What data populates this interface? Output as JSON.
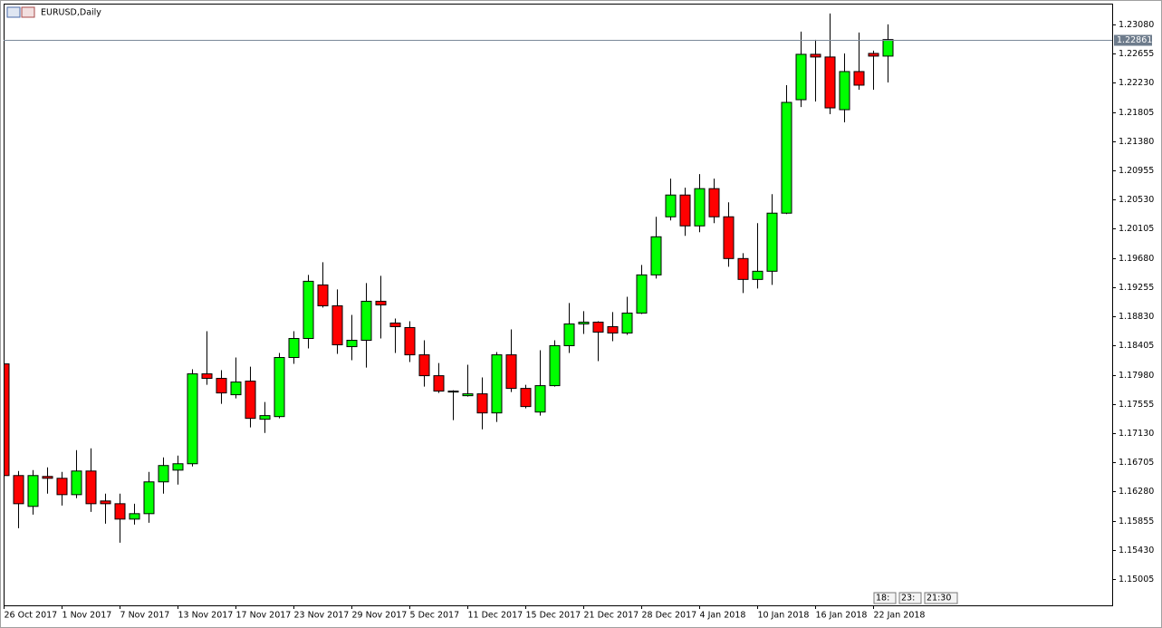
{
  "chart_data": {
    "type": "candlestick",
    "title": "EURUSD,Daily",
    "categories": [
      "26 Oct 2017",
      null,
      null,
      null,
      "1 Nov 2017",
      null,
      null,
      null,
      "7 Nov 2017",
      null,
      null,
      null,
      "13 Nov 2017",
      null,
      null,
      null,
      "17 Nov 2017",
      null,
      null,
      null,
      "23 Nov 2017",
      null,
      null,
      null,
      "29 Nov 2017",
      null,
      null,
      null,
      "5 Dec 2017",
      null,
      null,
      null,
      "11 Dec 2017",
      null,
      null,
      null,
      "15 Dec 2017",
      null,
      null,
      null,
      "21 Dec 2017",
      null,
      null,
      null,
      "28 Dec 2017",
      null,
      null,
      null,
      "4 Jan 2018",
      null,
      null,
      null,
      "10 Jan 2018",
      null,
      null,
      null,
      "16 Jan 2018",
      null,
      null,
      null,
      "22 Jan 2018",
      null
    ],
    "open": [
      1.18138,
      1.16512,
      1.16063,
      1.16499,
      1.16472,
      1.16234,
      1.16578,
      1.16142,
      1.16102,
      1.15878,
      1.15957,
      1.1642,
      1.16591,
      1.16684,
      1.17993,
      1.17927,
      1.17689,
      1.17887,
      1.17332,
      1.17371,
      1.18231,
      1.18508,
      1.19288,
      1.18984,
      1.18389,
      1.18482,
      1.1905,
      1.18733,
      1.18667,
      1.1827,
      1.17966,
      1.17728,
      1.17675,
      1.17702,
      1.17424,
      1.1827,
      1.17781,
      1.17437,
      1.17821,
      1.18403,
      1.1872,
      1.18746,
      1.1868,
      1.18588,
      1.18878,
      1.19434,
      1.2028,
      1.20597,
      1.20148,
      1.2069,
      1.2028,
      1.19672,
      1.19368,
      1.19487,
      1.20333,
      1.21985,
      1.22646,
      1.22607,
      1.2184,
      1.22395,
      1.22659,
      1.2262
    ],
    "high": [
      1.18138,
      1.16578,
      1.16591,
      1.16631,
      1.16565,
      1.16882,
      1.16909,
      1.16248,
      1.16248,
      1.16102,
      1.16565,
      1.16776,
      1.16803,
      1.18059,
      1.18614,
      1.18046,
      1.18231,
      1.18098,
      1.17583,
      1.18297,
      1.18614,
      1.19434,
      1.19619,
      1.19222,
      1.18852,
      1.19315,
      1.1942,
      1.18799,
      1.18759,
      1.18482,
      1.18151,
      1.17755,
      1.18125,
      1.1794,
      1.1831,
      1.18641,
      1.17834,
      1.18336,
      1.18482,
      1.19024,
      1.18905,
      1.18759,
      1.18892,
      1.19116,
      1.19579,
      1.2028,
      1.20835,
      1.20703,
      1.20901,
      1.20835,
      1.20491,
      1.19751,
      1.20187,
      1.2061,
      1.22197,
      1.22977,
      1.22858,
      1.23241,
      1.22659,
      1.22963,
      1.22699,
      1.23082
    ],
    "low": [
      1.16512,
      1.15745,
      1.15944,
      1.16248,
      1.16076,
      1.16182,
      1.15983,
      1.15811,
      1.15534,
      1.15798,
      1.15825,
      1.16248,
      1.1638,
      1.16644,
      1.17834,
      1.17556,
      1.17636,
      1.17213,
      1.17133,
      1.17345,
      1.18138,
      1.18363,
      1.18958,
      1.18284,
      1.18191,
      1.18085,
      1.18508,
      1.18297,
      1.18165,
      1.17808,
      1.17715,
      1.17319,
      1.17662,
      1.17186,
      1.17292,
      1.17728,
      1.1749,
      1.17385,
      1.17808,
      1.18297,
      1.18574,
      1.18178,
      1.18469,
      1.18561,
      1.18865,
      1.19381,
      1.20227,
      1.20002,
      1.20055,
      1.20187,
      1.19553,
      1.19169,
      1.19235,
      1.19288,
      1.20319,
      1.21879,
      1.21959,
      1.21774,
      1.21655,
      1.22131,
      1.22131,
      1.22236
    ],
    "close": [
      1.16512,
      1.16102,
      1.16512,
      1.16472,
      1.16234,
      1.16578,
      1.16102,
      1.16102,
      1.15878,
      1.15957,
      1.1642,
      1.16658,
      1.16684,
      1.17993,
      1.17927,
      1.17715,
      1.17874,
      1.17345,
      1.17385,
      1.18231,
      1.18508,
      1.19341,
      1.18984,
      1.18416,
      1.18482,
      1.1905,
      1.18997,
      1.1868,
      1.1827,
      1.17966,
      1.17742,
      1.17742,
      1.17702,
      1.17424,
      1.1827,
      1.17781,
      1.17517,
      1.17821,
      1.18403,
      1.1872,
      1.18746,
      1.18601,
      1.18588,
      1.18878,
      1.19434,
      1.19989,
      1.20597,
      1.20148,
      1.2069,
      1.2028,
      1.19672,
      1.19368,
      1.19487,
      1.20333,
      1.21946,
      1.22646,
      1.22607,
      1.21866,
      1.22395,
      1.22197,
      1.2262,
      1.22861
    ],
    "up_color": "#00ff00",
    "down_color": "#ff0000",
    "current_price": 1.22861,
    "ylim": [
      1.14622,
      1.23371
    ],
    "yticks": [
      {
        "value": 1.2308,
        "label": "1.23080"
      },
      1.22655,
      {
        "value": 1.2223,
        "label": "1.22230"
      },
      1.21805,
      {
        "value": 1.2138,
        "label": "1.21380"
      },
      1.20955,
      {
        "value": 1.2053,
        "label": "1.20530"
      },
      1.20105,
      {
        "value": 1.1968,
        "label": "1.19680"
      },
      1.19255,
      {
        "value": 1.1883,
        "label": "1.18830"
      },
      1.18405,
      {
        "value": 1.1798,
        "label": "1.17980"
      },
      1.17555,
      {
        "value": 1.1713,
        "label": "1.17130"
      },
      1.16705,
      {
        "value": 1.1628,
        "label": "1.16280"
      },
      1.15855,
      {
        "value": 1.1543,
        "label": "1.15430"
      },
      1.15005
    ],
    "scroll_labels": [
      "18:",
      "23:",
      "21:30"
    ]
  }
}
